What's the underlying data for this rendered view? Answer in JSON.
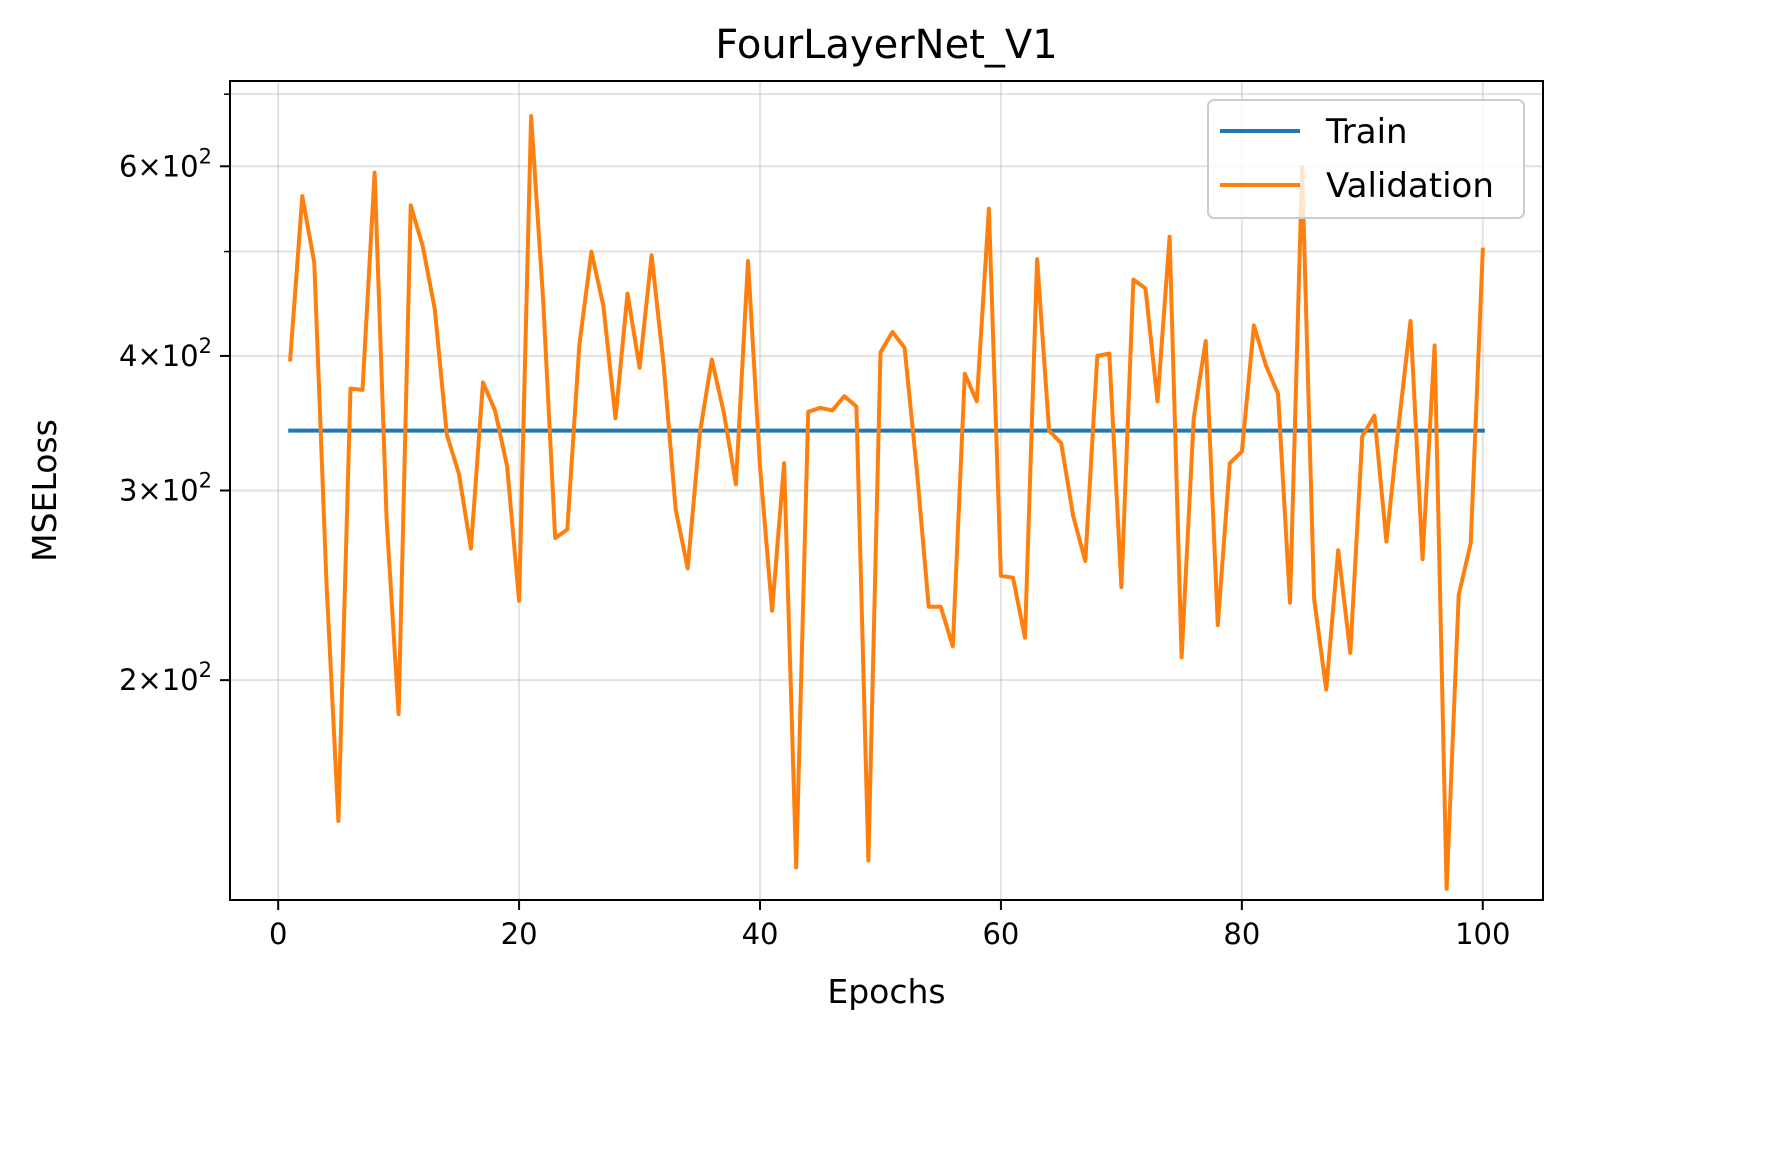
{
  "chart_data": {
    "type": "line",
    "title": "FourLayerNet_V1",
    "xlabel": "Epochs",
    "ylabel": "MSELoss",
    "yscale": "log",
    "xlim": [
      -4,
      105
    ],
    "ylim": [
      125,
      720
    ],
    "x_ticks": [
      0,
      20,
      40,
      60,
      80,
      100
    ],
    "y_ticks": [
      {
        "value": 200,
        "mantissa": "2",
        "base": "10",
        "exp": "2"
      },
      {
        "value": 300,
        "mantissa": "3",
        "base": "10",
        "exp": "2"
      },
      {
        "value": 400,
        "mantissa": "4",
        "base": "10",
        "exp": "2"
      },
      {
        "value": 600,
        "mantissa": "6",
        "base": "10",
        "exp": "2"
      }
    ],
    "y_minor_ticks": [
      500,
      700
    ],
    "grid": true,
    "legend_position": "upper right",
    "x": [
      1,
      2,
      3,
      4,
      5,
      6,
      7,
      8,
      9,
      10,
      11,
      12,
      13,
      14,
      15,
      16,
      17,
      18,
      19,
      20,
      21,
      22,
      23,
      24,
      25,
      26,
      27,
      28,
      29,
      30,
      31,
      32,
      33,
      34,
      35,
      36,
      37,
      38,
      39,
      40,
      41,
      42,
      43,
      44,
      45,
      46,
      47,
      48,
      49,
      50,
      51,
      52,
      53,
      54,
      55,
      56,
      57,
      58,
      59,
      60,
      61,
      62,
      63,
      64,
      65,
      66,
      67,
      68,
      69,
      70,
      71,
      72,
      73,
      74,
      75,
      76,
      77,
      78,
      79,
      80,
      81,
      82,
      83,
      84,
      85,
      86,
      87,
      88,
      89,
      90,
      91,
      92,
      93,
      94,
      95,
      96,
      97,
      98,
      99,
      100
    ],
    "series": [
      {
        "name": "Train",
        "color": "#1f77b4",
        "values": [
          341,
          341,
          341,
          341,
          341,
          341,
          341,
          341,
          341,
          341,
          341,
          341,
          341,
          341,
          341,
          341,
          341,
          341,
          341,
          341,
          341,
          341,
          341,
          341,
          341,
          341,
          341,
          341,
          341,
          341,
          341,
          341,
          341,
          341,
          341,
          341,
          341,
          341,
          341,
          341,
          341,
          341,
          341,
          341,
          341,
          341,
          341,
          341,
          341,
          341,
          341,
          341,
          341,
          341,
          341,
          341,
          341,
          341,
          341,
          341,
          341,
          341,
          341,
          341,
          341,
          341,
          341,
          341,
          341,
          341,
          341,
          341,
          341,
          341,
          341,
          341,
          341,
          341,
          341,
          341,
          341,
          341,
          341,
          341,
          341,
          341,
          341,
          341,
          341,
          341,
          341,
          341,
          341,
          341,
          341,
          341,
          341,
          341,
          341,
          341
        ]
      },
      {
        "name": "Validation",
        "color": "#ff7f0e",
        "values": [
          397,
          563,
          488,
          247,
          148,
          373,
          372,
          592,
          282,
          186,
          552,
          506,
          442,
          338,
          311,
          265,
          378,
          356,
          316,
          237,
          668,
          450,
          271,
          276,
          409,
          500,
          445,
          350,
          457,
          390,
          496,
          392,
          288,
          254,
          339,
          397,
          354,
          304,
          490,
          316,
          232,
          318,
          134,
          355,
          358,
          356,
          367,
          359,
          136,
          403,
          421,
          407,
          315,
          234,
          234,
          215,
          385,
          363,
          548,
          250,
          249,
          219,
          492,
          341,
          332,
          284,
          258,
          400,
          402,
          244,
          471,
          462,
          363,
          516,
          210,
          350,
          413,
          225,
          318,
          326,
          427,
          392,
          369,
          236,
          599,
          238,
          196,
          264,
          212,
          337,
          352,
          269,
          343,
          431,
          259,
          409,
          128,
          240,
          268,
          502
        ]
      }
    ]
  }
}
